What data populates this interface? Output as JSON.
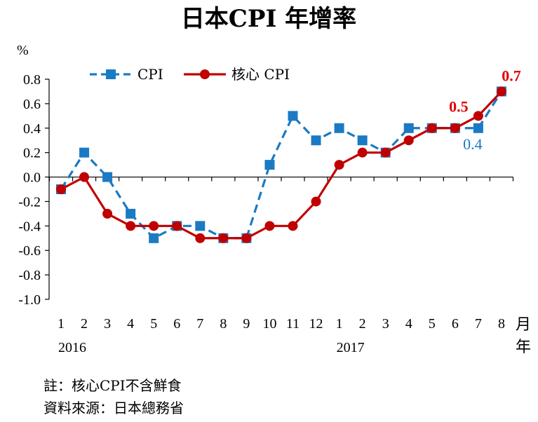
{
  "chart_data": {
    "type": "line",
    "title": "日本CPI 年增率",
    "ylabel": "%",
    "xlabel": "月\n年",
    "ylim": [
      -1.0,
      0.8
    ],
    "yticks": [
      "0.8",
      "0.6",
      "0.4",
      "0.2",
      "0.0",
      "-0.2",
      "-0.4",
      "-0.6",
      "-0.8",
      "-1.0"
    ],
    "categories": [
      "1",
      "2",
      "3",
      "4",
      "5",
      "6",
      "7",
      "8",
      "9",
      "10",
      "11",
      "12",
      "1",
      "2",
      "3",
      "4",
      "5",
      "6",
      "7",
      "8"
    ],
    "years": [
      {
        "label": "2016",
        "index": 0
      },
      {
        "label": "2017",
        "index": 12
      }
    ],
    "series": [
      {
        "name": "CPI",
        "color": "#1a7ac4",
        "dash": true,
        "marker": "square",
        "values": [
          -0.1,
          0.2,
          0.0,
          -0.3,
          -0.5,
          -0.4,
          -0.4,
          -0.5,
          -0.5,
          0.1,
          0.5,
          0.3,
          0.4,
          0.3,
          0.2,
          0.4,
          0.4,
          0.4,
          0.4,
          0.7
        ]
      },
      {
        "name": "核心 CPI",
        "color": "#c00000",
        "dash": false,
        "marker": "circle",
        "values": [
          -0.1,
          0.0,
          -0.3,
          -0.4,
          -0.4,
          -0.4,
          -0.5,
          -0.5,
          -0.5,
          -0.4,
          -0.4,
          -0.2,
          0.1,
          0.2,
          0.2,
          0.3,
          0.4,
          0.4,
          0.5,
          0.7
        ]
      }
    ],
    "annotations": [
      {
        "text": "0.7",
        "series": 1,
        "index": 19,
        "color": "#e00000",
        "bold": true
      },
      {
        "text": "0.5",
        "series": 1,
        "index": 18,
        "color": "#e00000",
        "bold": true
      },
      {
        "text": "0.4",
        "series": 0,
        "index": 18,
        "color": "#1a7ac4",
        "bold": false
      }
    ],
    "legend": "top-left",
    "grid": false
  },
  "notes": {
    "line1": "註：核心CPI不含鮮食",
    "line2": "資料來源：日本總務省"
  }
}
